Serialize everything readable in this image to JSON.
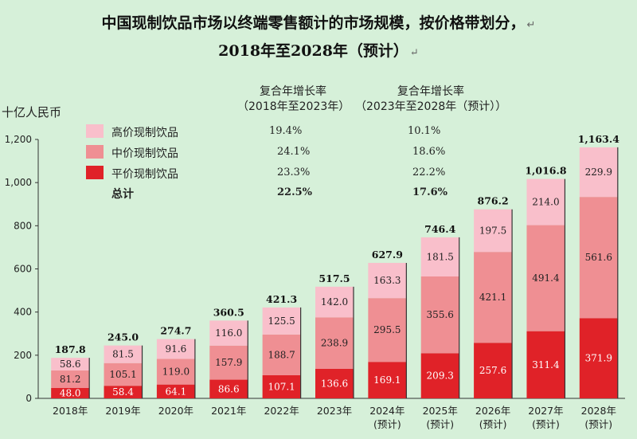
{
  "title_line1": "中国现制饮品市场以终端零售额计的市场规模，按价格带划分，",
  "title_line2": "2018年至2028年（预计）",
  "return_mark": "↵",
  "y_unit": "十亿人民币",
  "cagr_headers": [
    {
      "line1": "复合年增长率",
      "line2": "（2018年至2023年）"
    },
    {
      "line1": "复合年增长率",
      "line2": "（2023年至2028年（预计））"
    }
  ],
  "legend": [
    {
      "label": "高价现制饮品",
      "color": "#f9bfcb",
      "cagr_hist": "19.4%",
      "cagr_fcst": "10.1%"
    },
    {
      "label": "中价现制饮品",
      "color": "#ef8f93",
      "cagr_hist": "24.1%",
      "cagr_fcst": "18.6%"
    },
    {
      "label": "平价现制饮品",
      "color": "#e02228",
      "cagr_hist": "23.3%",
      "cagr_fcst": "22.2%"
    },
    {
      "label": "总计",
      "color": "",
      "cagr_hist": "22.5%",
      "cagr_fcst": "17.6%"
    }
  ],
  "chart_data": {
    "type": "bar",
    "stacked": true,
    "ylabel": "十亿人民币",
    "ylim": [
      0,
      1200
    ],
    "yticks": [
      "0",
      "200",
      "400",
      "600",
      "800",
      "1,000",
      "1,200"
    ],
    "categories": [
      "2018年",
      "2019年",
      "2020年",
      "2021年",
      "2022年",
      "2023年",
      "2024年(预计)",
      "2025年(预计)",
      "2026年(预计)",
      "2027年(预计)",
      "2028年(预计)"
    ],
    "series": [
      {
        "name": "平价现制饮品",
        "color": "#e02228",
        "values": [
          48.0,
          58.4,
          64.1,
          86.6,
          107.1,
          136.6,
          169.1,
          209.3,
          257.6,
          311.4,
          371.9
        ],
        "labels": [
          "48.0",
          "58.4",
          "64.1",
          "86.6",
          "107.1",
          "136.6",
          "169.1",
          "209.3",
          "257.6",
          "311.4",
          "371.9"
        ]
      },
      {
        "name": "中价现制饮品",
        "color": "#ef8f93",
        "values": [
          81.2,
          105.1,
          119.0,
          157.9,
          188.7,
          238.9,
          295.5,
          355.6,
          421.1,
          491.4,
          561.6
        ],
        "labels": [
          "81.2",
          "105.1",
          "119.0",
          "157.9",
          "188.7",
          "238.9",
          "295.5",
          "355.6",
          "421.1",
          "491.4",
          "561.6"
        ]
      },
      {
        "name": "高价现制饮品",
        "color": "#f9bfcb",
        "values": [
          58.6,
          81.5,
          91.6,
          116.0,
          125.5,
          142.0,
          163.3,
          181.5,
          197.5,
          214.0,
          229.9
        ],
        "labels": [
          "58.6",
          "81.5",
          "91.6",
          "116.0",
          "125.5",
          "142.0",
          "163.3",
          "181.5",
          "197.5",
          "214.0",
          "229.9"
        ]
      }
    ],
    "totals": [
      187.8,
      245.0,
      274.7,
      360.5,
      421.3,
      517.5,
      627.9,
      746.4,
      876.2,
      1016.8,
      1163.4
    ],
    "total_labels": [
      "187.8",
      "245.0",
      "274.7",
      "360.5",
      "421.3",
      "517.5",
      "627.9",
      "746.4",
      "876.2",
      "1,016.8",
      "1,163.4"
    ],
    "x_labels": [
      [
        "2018年"
      ],
      [
        "2019年"
      ],
      [
        "2020年"
      ],
      [
        "2021年"
      ],
      [
        "2022年"
      ],
      [
        "2023年"
      ],
      [
        "2024年",
        "(预计)"
      ],
      [
        "2025年",
        "(预计)"
      ],
      [
        "2026年",
        "(预计)"
      ],
      [
        "2027年",
        "(预计)"
      ],
      [
        "2028年",
        "(预计)"
      ]
    ]
  }
}
